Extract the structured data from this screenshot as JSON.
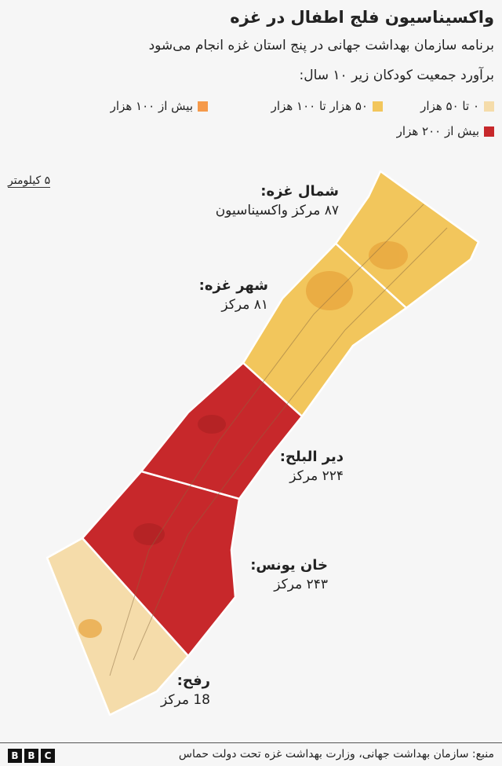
{
  "title": "واکسیناسیون فلج اطفال در غزه",
  "subtitle": "برنامه سازمان بهداشت جهانی در پنج استان غزه انجام می‌شود",
  "legend_title": "برآورد جمعیت کودکان زیر ۱۰ سال:",
  "legend": [
    {
      "label": "۰ تا ۵۰ هزار",
      "color": "#f5dcaa"
    },
    {
      "label": "۵۰ هزار تا ۱۰۰ هزار",
      "color": "#f2c65c"
    },
    {
      "label": "بیش از ۱۰۰ هزار",
      "color": "#f59a4b"
    },
    {
      "label": "بیش از ۲۰۰ هزار",
      "color": "#c7282b"
    }
  ],
  "scale": "۵ کیلومتر",
  "regions": [
    {
      "name": "شمال غزه:",
      "centers": "۸۷ مرکز واکسیناسیون",
      "color": "#f2c65c"
    },
    {
      "name": "شهر غزه:",
      "centers": "۸۱ مرکز",
      "color": "#f2c65c"
    },
    {
      "name": "دیر البلح:",
      "centers": "۲۲۴ مرکز",
      "color": "#c7282b"
    },
    {
      "name": "خان یونس:",
      "centers": "۲۴۳ مرکز",
      "color": "#c7282b"
    },
    {
      "name": "رفح:",
      "centers": "18 مرکز",
      "color": "#f5dcaa"
    }
  ],
  "source": "منبع: سازمان بهداشت جهانی، وزارت بهداشت غزه تحت دولت حماس",
  "logo": [
    "B",
    "B",
    "C"
  ]
}
